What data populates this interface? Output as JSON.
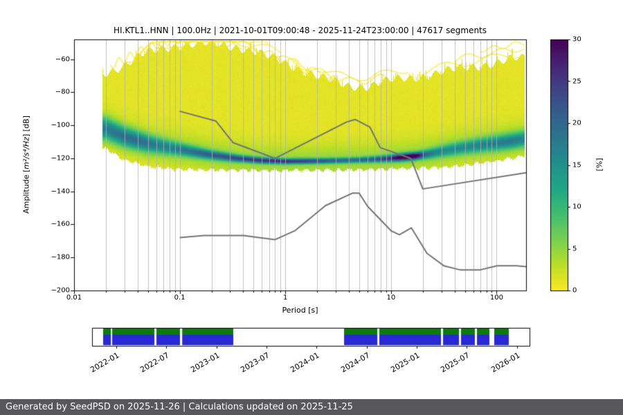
{
  "title": "HI.KTL1..HNN | 100.0Hz | 2021-10-01T09:00:48 - 2025-11-24T23:00:00 | 47617 segments",
  "footer": "Generated by SeedPSD on 2025-11-26 | Calculations updated on 2025-11-25",
  "colors": {
    "grid": "#b0b0b0",
    "noise_model_line": "#737373",
    "colorbar_top": "#440154",
    "colorbar_bottom": "#fde725",
    "timeline_green": "#0c7a0c",
    "timeline_blue": "#2929d4",
    "footer_bg": "#58585a",
    "footer_text": "#ffffff",
    "spine": "#000000"
  },
  "chart_data": {
    "type": "heatmap",
    "title": "HI.KTL1..HNN | 100.0Hz | 2021-10-01T09:00:48 - 2025-11-24T23:00:00 | 47617 segments",
    "xlabel": "Period [s]",
    "ylabel": "Amplitude [m²/s⁴/Hz] [dB]",
    "ylabel_parts": [
      "Amplitude [",
      "m²/s⁴/Hz",
      "] [dB]"
    ],
    "colorbar_label": "[%]",
    "x_scale": "log",
    "xlim": [
      0.01,
      190
    ],
    "ylim": [
      -200,
      -48
    ],
    "x_ticks": [
      "0.01",
      "0.1",
      "1",
      "10",
      "100"
    ],
    "x_tick_values": [
      0.01,
      0.1,
      1,
      10,
      100
    ],
    "y_tick_values": [
      -60,
      -80,
      -100,
      -120,
      -140,
      -160,
      -180,
      -200
    ],
    "y_tick_labels": [
      "−60",
      "−80",
      "−100",
      "−120",
      "−140",
      "−160",
      "−180",
      "−200"
    ],
    "colorbar_ticks": [
      0,
      5,
      10,
      15,
      20,
      25,
      30
    ],
    "colorbar_tick_labels": [
      "0",
      "5",
      "10",
      "15",
      "20",
      "25",
      "30"
    ],
    "colorbar_range": [
      0,
      30
    ],
    "viridis_stops": [
      [
        68,
        1,
        84
      ],
      [
        72,
        36,
        117
      ],
      [
        65,
        68,
        135
      ],
      [
        53,
        95,
        141
      ],
      [
        42,
        120,
        142
      ],
      [
        33,
        145,
        140
      ],
      [
        34,
        168,
        132
      ],
      [
        68,
        191,
        112
      ],
      [
        122,
        209,
        81
      ],
      [
        189,
        223,
        38
      ],
      [
        253,
        231,
        37
      ]
    ],
    "density_model": {
      "period_range": [
        0.02,
        186
      ],
      "top_db": [
        [
          0.02,
          -68
        ],
        [
          0.03,
          -63
        ],
        [
          0.045,
          -57
        ],
        [
          0.07,
          -53
        ],
        [
          0.1,
          -51
        ],
        [
          0.2,
          -50.5
        ],
        [
          0.35,
          -52
        ],
        [
          0.5,
          -55
        ],
        [
          0.8,
          -60
        ],
        [
          1.2,
          -64
        ],
        [
          2,
          -70
        ],
        [
          3,
          -74
        ],
        [
          4,
          -76
        ],
        [
          6,
          -76
        ],
        [
          8,
          -74
        ],
        [
          12,
          -72
        ],
        [
          20,
          -70
        ],
        [
          35,
          -67
        ],
        [
          60,
          -64
        ],
        [
          100,
          -62
        ],
        [
          140,
          -60
        ],
        [
          185,
          -59
        ]
      ],
      "bottom_db": [
        [
          0.02,
          -114
        ],
        [
          0.03,
          -121
        ],
        [
          0.05,
          -125
        ],
        [
          0.08,
          -126.5
        ],
        [
          0.15,
          -127
        ],
        [
          1,
          -127.5
        ],
        [
          5,
          -127
        ],
        [
          10,
          -126.5
        ],
        [
          20,
          -126
        ],
        [
          40,
          -125
        ],
        [
          70,
          -123
        ],
        [
          100,
          -121.5
        ],
        [
          140,
          -120
        ],
        [
          185,
          -118.5
        ]
      ],
      "mode_db": [
        [
          0.02,
          -102
        ],
        [
          0.03,
          -107
        ],
        [
          0.05,
          -111
        ],
        [
          0.08,
          -113.5
        ],
        [
          0.12,
          -115.5
        ],
        [
          0.2,
          -118
        ],
        [
          0.35,
          -120
        ],
        [
          0.6,
          -121.3
        ],
        [
          1,
          -121.8
        ],
        [
          2,
          -121.6
        ],
        [
          4,
          -121.2
        ],
        [
          7,
          -120.6
        ],
        [
          10,
          -120
        ],
        [
          13,
          -119.3
        ],
        [
          17,
          -118.6
        ],
        [
          22,
          -117.5
        ],
        [
          30,
          -115.8
        ],
        [
          45,
          -113.8
        ],
        [
          70,
          -112
        ],
        [
          100,
          -110.8
        ],
        [
          140,
          -109.5
        ],
        [
          185,
          -108.2
        ]
      ],
      "peak_percent": [
        [
          0.02,
          13
        ],
        [
          0.04,
          15
        ],
        [
          0.07,
          12
        ],
        [
          0.12,
          14
        ],
        [
          0.2,
          17
        ],
        [
          0.4,
          20
        ],
        [
          0.8,
          22
        ],
        [
          1.5,
          20
        ],
        [
          2.5,
          17
        ],
        [
          4,
          15
        ],
        [
          6,
          16
        ],
        [
          8,
          19
        ],
        [
          10,
          22
        ],
        [
          12,
          27
        ],
        [
          14,
          30
        ],
        [
          16,
          30
        ],
        [
          18,
          26
        ],
        [
          21,
          16
        ],
        [
          26,
          12
        ],
        [
          35,
          11
        ],
        [
          50,
          11
        ],
        [
          70,
          12
        ],
        [
          100,
          13
        ],
        [
          140,
          13
        ],
        [
          185,
          12
        ]
      ],
      "sigma_db": [
        [
          0.02,
          4.5
        ],
        [
          0.05,
          3.5
        ],
        [
          0.1,
          2.5
        ],
        [
          0.2,
          1.8
        ],
        [
          0.4,
          1.3
        ],
        [
          1,
          1.1
        ],
        [
          5,
          1.1
        ],
        [
          9,
          1.3
        ],
        [
          12,
          1.5
        ],
        [
          18,
          1.5
        ],
        [
          25,
          2
        ],
        [
          40,
          2.5
        ],
        [
          70,
          2.8
        ],
        [
          100,
          3
        ],
        [
          185,
          3.2
        ]
      ]
    },
    "noise_models": {
      "high": [
        [
          0.1,
          -91.5
        ],
        [
          0.22,
          -97.4
        ],
        [
          0.32,
          -110.5
        ],
        [
          0.8,
          -120
        ],
        [
          3.8,
          -98
        ],
        [
          4.6,
          -96.5
        ],
        [
          6.3,
          -101
        ],
        [
          7.9,
          -113.5
        ],
        [
          15.4,
          -120
        ],
        [
          20,
          -138.5
        ],
        [
          190,
          -128.7
        ]
      ],
      "low": [
        [
          0.1,
          -168
        ],
        [
          0.17,
          -166.7
        ],
        [
          0.4,
          -166.7
        ],
        [
          0.8,
          -169.2
        ],
        [
          1.24,
          -163.7
        ],
        [
          2.4,
          -148.6
        ],
        [
          4.3,
          -141.1
        ],
        [
          5,
          -141.1
        ],
        [
          6,
          -149
        ],
        [
          10,
          -163.8
        ],
        [
          12,
          -166.2
        ],
        [
          15.6,
          -162.1
        ],
        [
          21.9,
          -177.5
        ],
        [
          31.6,
          -185
        ],
        [
          45,
          -187.5
        ],
        [
          70,
          -187.5
        ],
        [
          101,
          -185
        ],
        [
          154,
          -185
        ],
        [
          190,
          -185.6
        ]
      ]
    },
    "timeline": {
      "tick_labels": [
        "2022-01",
        "2022-07",
        "2023-01",
        "2023-07",
        "2024-01",
        "2024-07",
        "2025-01",
        "2025-07",
        "2026-01"
      ],
      "tick_positions": [
        0.0554,
        0.1698,
        0.2842,
        0.3987,
        0.5131,
        0.6275,
        0.742,
        0.8564,
        0.9708
      ],
      "segments": [
        [
          0.0253,
          0.043
        ],
        [
          0.046,
          0.1424
        ],
        [
          0.1472,
          0.201
        ],
        [
          0.206,
          0.3228
        ],
        [
          0.576,
          0.652
        ],
        [
          0.6566,
          0.7975
        ],
        [
          0.8023,
          0.8386
        ],
        [
          0.8434,
          0.875
        ],
        [
          0.8798,
          0.9082
        ],
        [
          0.9193,
          0.9525
        ]
      ]
    }
  }
}
